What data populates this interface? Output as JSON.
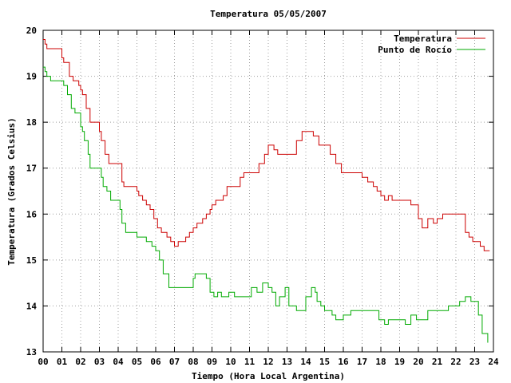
{
  "chart_data": {
    "type": "line",
    "title": "Temperatura 05/05/2007",
    "xlabel": "Tiempo (Hora Local Argentina)",
    "ylabel": "Temperatura (Grados Celsius)",
    "xlim": [
      0,
      24
    ],
    "ylim": [
      13,
      20
    ],
    "x_ticks": [
      "00",
      "01",
      "02",
      "03",
      "04",
      "05",
      "06",
      "07",
      "08",
      "09",
      "10",
      "11",
      "12",
      "13",
      "14",
      "15",
      "16",
      "17",
      "18",
      "19",
      "20",
      "21",
      "22",
      "23",
      "24"
    ],
    "y_ticks": [
      "13",
      "14",
      "15",
      "16",
      "17",
      "18",
      "19",
      "20"
    ],
    "grid": true,
    "legend_position": "top-right",
    "colors": {
      "Temperatura": "#cc0000",
      "Punto de Rocío": "#00aa00"
    },
    "series": [
      {
        "name": "Temperatura",
        "x": [
          0,
          0.1,
          0.2,
          0.4,
          1.0,
          1.1,
          1.4,
          1.6,
          1.9,
          2.0,
          2.1,
          2.3,
          2.5,
          2.7,
          3.0,
          3.1,
          3.3,
          3.5,
          3.6,
          3.8,
          4.2,
          4.3,
          4.4,
          4.6,
          5.0,
          5.1,
          5.3,
          5.5,
          5.7,
          5.9,
          6.1,
          6.3,
          6.5,
          6.6,
          6.8,
          7.0,
          7.2,
          7.4,
          7.6,
          7.8,
          8.0,
          8.2,
          8.3,
          8.5,
          8.7,
          8.9,
          9.0,
          9.2,
          9.4,
          9.6,
          9.8,
          10.0,
          10.2,
          10.5,
          10.7,
          11.0,
          11.2,
          11.5,
          11.8,
          12.0,
          12.1,
          12.3,
          12.5,
          12.8,
          13.0,
          13.2,
          13.5,
          13.8,
          14.0,
          14.2,
          14.4,
          14.7,
          15.0,
          15.3,
          15.6,
          15.9,
          16.2,
          16.4,
          16.6,
          17.0,
          17.3,
          17.6,
          17.8,
          18.0,
          18.2,
          18.4,
          18.6,
          18.8,
          19.0,
          19.3,
          19.6,
          19.8,
          20.0,
          20.2,
          20.5,
          20.8,
          21.0,
          21.3,
          21.5,
          21.8,
          22.0,
          22.3,
          22.5,
          22.7,
          22.9,
          23.1,
          23.3,
          23.5,
          23.8
        ],
        "values": [
          19.8,
          19.7,
          19.6,
          19.6,
          19.4,
          19.3,
          19.0,
          18.9,
          18.8,
          18.7,
          18.6,
          18.3,
          18.0,
          18.0,
          17.8,
          17.6,
          17.3,
          17.1,
          17.1,
          17.1,
          16.7,
          16.6,
          16.6,
          16.6,
          16.5,
          16.4,
          16.3,
          16.2,
          16.1,
          15.9,
          15.7,
          15.6,
          15.6,
          15.5,
          15.4,
          15.3,
          15.4,
          15.4,
          15.5,
          15.6,
          15.7,
          15.8,
          15.8,
          15.9,
          16.0,
          16.1,
          16.2,
          16.3,
          16.3,
          16.4,
          16.6,
          16.6,
          16.6,
          16.8,
          16.9,
          16.9,
          16.9,
          17.1,
          17.3,
          17.5,
          17.5,
          17.4,
          17.3,
          17.3,
          17.3,
          17.3,
          17.6,
          17.8,
          17.8,
          17.8,
          17.7,
          17.5,
          17.5,
          17.3,
          17.1,
          16.9,
          16.9,
          16.9,
          16.9,
          16.8,
          16.7,
          16.6,
          16.5,
          16.4,
          16.3,
          16.4,
          16.3,
          16.3,
          16.3,
          16.3,
          16.2,
          16.2,
          15.9,
          15.7,
          15.9,
          15.8,
          15.9,
          16.0,
          16.0,
          16.0,
          16.0,
          16.0,
          15.6,
          15.5,
          15.4,
          15.4,
          15.3,
          15.2,
          15.2
        ]
      },
      {
        "name": "Punto de Rocío",
        "x": [
          0,
          0.1,
          0.2,
          0.3,
          0.4,
          0.6,
          1.0,
          1.1,
          1.3,
          1.5,
          1.7,
          1.9,
          2.0,
          2.1,
          2.2,
          2.4,
          2.5,
          2.8,
          3.0,
          3.1,
          3.2,
          3.4,
          3.6,
          3.8,
          4.0,
          4.1,
          4.2,
          4.4,
          4.6,
          4.8,
          5.0,
          5.1,
          5.3,
          5.5,
          5.8,
          6.0,
          6.2,
          6.4,
          6.7,
          6.9,
          7.1,
          7.3,
          7.6,
          7.8,
          8.0,
          8.1,
          8.3,
          8.5,
          8.7,
          8.9,
          9.1,
          9.3,
          9.5,
          9.7,
          9.9,
          10.2,
          10.5,
          10.8,
          11.1,
          11.4,
          11.7,
          12.0,
          12.2,
          12.4,
          12.6,
          12.9,
          13.1,
          13.3,
          13.5,
          13.7,
          14.0,
          14.3,
          14.5,
          14.6,
          14.8,
          15.0,
          15.2,
          15.4,
          15.6,
          15.8,
          16.0,
          16.2,
          16.4,
          16.7,
          17.0,
          17.3,
          17.6,
          17.9,
          18.2,
          18.4,
          18.7,
          19.0,
          19.3,
          19.6,
          19.9,
          20.2,
          20.5,
          20.8,
          21.0,
          21.3,
          21.6,
          21.9,
          22.2,
          22.5,
          22.8,
          23.0,
          23.2,
          23.4,
          23.7
        ],
        "values": [
          19.2,
          19.1,
          19.0,
          19.0,
          18.9,
          18.9,
          18.9,
          18.8,
          18.6,
          18.3,
          18.2,
          18.2,
          17.9,
          17.8,
          17.6,
          17.3,
          17.0,
          17.0,
          17.0,
          16.8,
          16.6,
          16.5,
          16.3,
          16.3,
          16.3,
          16.1,
          15.8,
          15.6,
          15.6,
          15.6,
          15.5,
          15.5,
          15.5,
          15.4,
          15.3,
          15.2,
          15.0,
          14.7,
          14.4,
          14.4,
          14.4,
          14.4,
          14.4,
          14.4,
          14.6,
          14.7,
          14.7,
          14.7,
          14.6,
          14.3,
          14.2,
          14.3,
          14.2,
          14.2,
          14.3,
          14.2,
          14.2,
          14.2,
          14.4,
          14.3,
          14.5,
          14.4,
          14.3,
          14.0,
          14.2,
          14.4,
          14.0,
          14.0,
          13.9,
          13.9,
          14.2,
          14.4,
          14.3,
          14.1,
          14.0,
          13.9,
          13.9,
          13.8,
          13.7,
          13.7,
          13.8,
          13.8,
          13.9,
          13.9,
          13.9,
          13.9,
          13.9,
          13.7,
          13.6,
          13.7,
          13.7,
          13.7,
          13.6,
          13.8,
          13.7,
          13.7,
          13.9,
          13.9,
          13.9,
          13.9,
          14.0,
          14.0,
          14.1,
          14.2,
          14.1,
          14.1,
          13.8,
          13.4,
          13.2
        ]
      }
    ]
  }
}
